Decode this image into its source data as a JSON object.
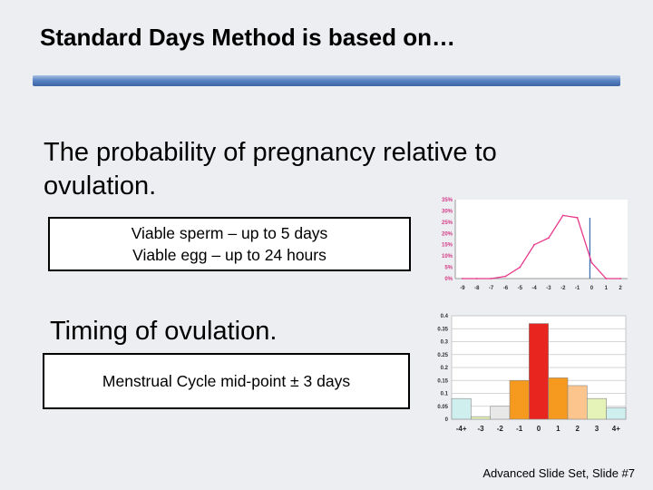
{
  "slide": {
    "title": "Standard Days Method is based on…",
    "heading1": "The probability of pregnancy relative to ovulation.",
    "box1_line1": "Viable sperm – up to 5 days",
    "box1_line2": "Viable egg – up to 24 hours",
    "heading2": "Timing of ovulation.",
    "box2_text": "Menstrual Cycle mid-point ± 3 days",
    "footer": "Advanced Slide Set, Slide #7"
  },
  "colors": {
    "title_bar": "#3d65a6",
    "line_color": "#e8388a",
    "ovulation_marker": "#3a6bb5",
    "bar_palette": [
      "#cfeeee",
      "#e6f3b8",
      "#e8e8e8",
      "#f59a1e",
      "#e8251f",
      "#f59a1e",
      "#fdc58e",
      "#e6f3b8",
      "#cfeeee"
    ]
  },
  "chart_data": [
    {
      "type": "line",
      "categories": [
        "-9",
        "-8",
        "-7",
        "-6",
        "-5",
        "-4",
        "-3",
        "-2",
        "-1",
        "0",
        "1",
        "2"
      ],
      "values": [
        0,
        0,
        0,
        1,
        5,
        15,
        18,
        28,
        27,
        7,
        0,
        0
      ],
      "yticks": [
        "0%",
        "5%",
        "10%",
        "15%",
        "20%",
        "25%",
        "30%",
        "35%"
      ],
      "ylim": [
        0,
        35
      ],
      "marker_at": "0"
    },
    {
      "type": "bar",
      "categories": [
        "-4+",
        "-3",
        "-2",
        "-1",
        "0",
        "1",
        "2",
        "3",
        "4+"
      ],
      "values": [
        0.08,
        0.01,
        0.05,
        0.15,
        0.37,
        0.16,
        0.13,
        0.08,
        0.045
      ],
      "yticks": [
        "0",
        "0.05",
        "0.1",
        "0.15",
        "0.2",
        "0.25",
        "0.3",
        "0.35",
        "0.4"
      ],
      "ylim": [
        0,
        0.4
      ],
      "grid": true
    }
  ]
}
